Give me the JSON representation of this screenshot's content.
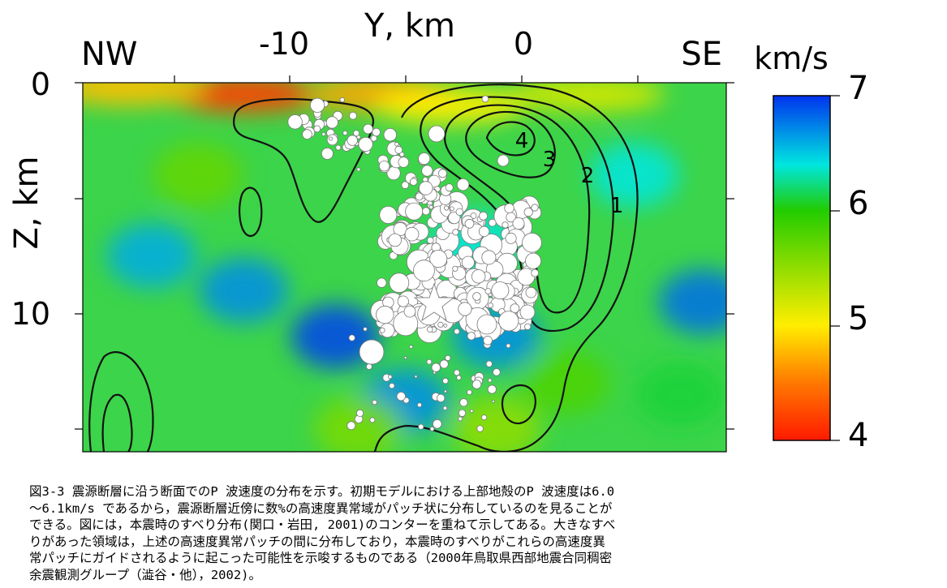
{
  "chart_data": {
    "type": "heatmap",
    "title": "",
    "xlabel": "Y, km",
    "ylabel": "Z, km",
    "direction_left": "NW",
    "direction_right": "SE",
    "xlim": [
      -19,
      9
    ],
    "ylim": [
      0,
      16
    ],
    "x_ticks": [
      -10,
      0
    ],
    "y_ticks": [
      0,
      10
    ],
    "colorbar": {
      "label": "km/s",
      "range": [
        4,
        7
      ],
      "ticks": [
        7,
        6,
        5,
        4
      ],
      "colors": [
        "#ff1a00",
        "#ff7a00",
        "#ffee00",
        "#22cc00",
        "#00e6e0",
        "#0033ee"
      ]
    },
    "contour_labels": [
      "4",
      "3",
      "2",
      "1"
    ],
    "mainshock_marker": "star",
    "hypocenter_marker": "white-circles",
    "velocity_anomalies": [
      {
        "y": -12,
        "z": 0.5,
        "v": 4.2
      },
      {
        "y": -6,
        "z": 0.5,
        "v": 4.7
      },
      {
        "y": -3,
        "z": 1.0,
        "v": 5.0
      },
      {
        "y": 3,
        "z": 0.5,
        "v": 5.2
      },
      {
        "y": -17,
        "z": 0.2,
        "v": 4.8
      },
      {
        "y": -14,
        "z": 4.0,
        "v": 5.7
      },
      {
        "y": -16,
        "z": 7.5,
        "v": 6.6
      },
      {
        "y": -12,
        "z": 9.0,
        "v": 6.7
      },
      {
        "y": -8,
        "z": 11.0,
        "v": 6.95
      },
      {
        "y": -5,
        "z": 13.8,
        "v": 6.7
      },
      {
        "y": -1,
        "z": 11.0,
        "v": 6.7
      },
      {
        "y": 8,
        "z": 9.5,
        "v": 6.8
      },
      {
        "y": 5,
        "z": 4.0,
        "v": 6.4
      },
      {
        "y": -2,
        "z": 7.0,
        "v": 6.4
      },
      {
        "y": -7,
        "z": 15.0,
        "v": 5.6
      },
      {
        "y": -1,
        "z": 15.0,
        "v": 5.5
      },
      {
        "y": 2,
        "z": 13.0,
        "v": 5.8
      },
      {
        "y": 7,
        "z": 13.5,
        "v": 6.1
      }
    ]
  },
  "caption": {
    "lines": [
      "図3-3 震源断層に沿う断面でのP 波速度の分布を示す。初期モデルにおける上部地殻のP 波速度は6.0",
      "～6.1km/s であるから，震源断層近傍に数%の高速度異常域がパッチ状に分布しているのを見ることが",
      "できる。図には，本震時のすべり分布(関口・岩田, 2001)のコンターを重ねて示してある。大きなすべ",
      "りがあった領域は，上述の高速度異常パッチの間に分布しており，本震時のすべりがこれらの高速度異",
      "常パッチにガイドされるように起こった可能性を示唆するものである（2000年鳥取県西部地震合同稠密",
      "余震観測グループ（澁谷・他），2002)。"
    ]
  }
}
